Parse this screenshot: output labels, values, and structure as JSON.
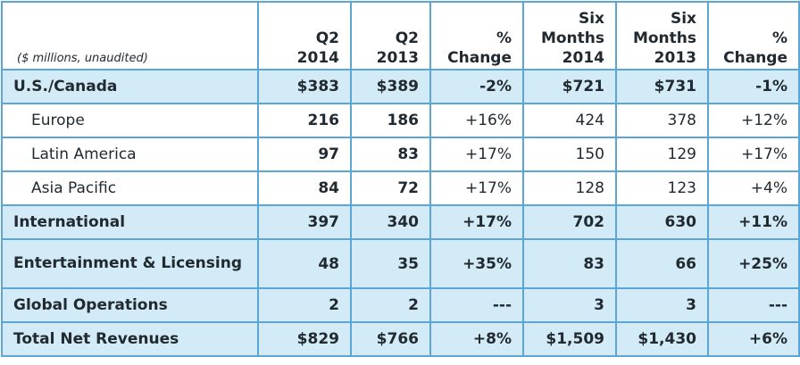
{
  "header": {
    "label": "($ millions, unaudited)",
    "columns": [
      [
        "Q2",
        "2014"
      ],
      [
        "Q2",
        "2013"
      ],
      [
        "%",
        "Change"
      ],
      [
        "Six",
        "Months",
        "2014"
      ],
      [
        "Six",
        "Months",
        "2013"
      ],
      [
        "%",
        "Change"
      ]
    ]
  },
  "rows": [
    {
      "label": "U.S./Canada",
      "values": [
        "$383",
        "$389",
        "-2%",
        "$721",
        "$731",
        "-1%"
      ]
    },
    {
      "label": "Europe",
      "values": [
        "216",
        "186",
        "+16%",
        "424",
        "378",
        "+12%"
      ]
    },
    {
      "label": "Latin America",
      "values": [
        "97",
        "83",
        "+17%",
        "150",
        "129",
        "+17%"
      ]
    },
    {
      "label": "Asia Pacific",
      "values": [
        "84",
        "72",
        "+17%",
        "128",
        "123",
        "+4%"
      ]
    },
    {
      "label": "International",
      "values": [
        "397",
        "340",
        "+17%",
        "702",
        "630",
        "+11%"
      ]
    },
    {
      "label": "Entertainment & Licensing",
      "values": [
        "48",
        "35",
        "+35%",
        "83",
        "66",
        "+25%"
      ]
    },
    {
      "label": "Global Operations",
      "values": [
        "2",
        "2",
        "---",
        "3",
        "3",
        "---"
      ]
    },
    {
      "label": "Total Net Revenues",
      "values": [
        "$829",
        "$766",
        "+8%",
        "$1,509",
        "$1,430",
        "+6%"
      ]
    }
  ],
  "colors": {
    "border": "#5aa7d7",
    "highlight": "#d3ebf6",
    "text": "#222a31"
  }
}
